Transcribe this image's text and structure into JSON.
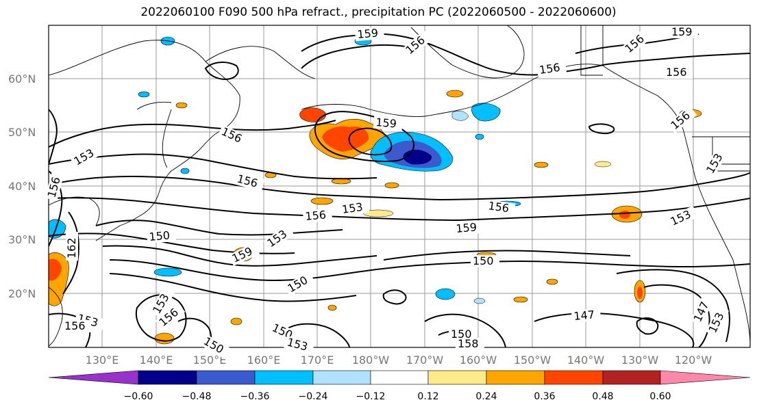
{
  "title": "2022060100 F090 500 hPa refract., precipitation PC (2022060500 - 2022060600)",
  "map": {
    "latitude_labels": [
      "60°N",
      "50°N",
      "40°N",
      "30°N",
      "20°N"
    ],
    "longitude_labels": [
      "130°E",
      "140°E",
      "150°E",
      "160°E",
      "170°E",
      "180°W",
      "170°W",
      "160°W",
      "150°W",
      "140°W",
      "130°W",
      "120°W"
    ],
    "contour_labels": [
      "159",
      "156",
      "156",
      "159",
      "156",
      "156",
      "153",
      "156",
      "156",
      "159",
      "156",
      "153",
      "156",
      "156",
      "153",
      "159",
      "150",
      "153",
      "159",
      "150",
      "153",
      "162",
      "150",
      "150",
      "153",
      "156",
      "153",
      "156",
      "147",
      "150",
      "153",
      "156",
      "147",
      "153",
      "150",
      "158"
    ]
  },
  "colorbar": {
    "tick_labels": [
      "−0.60",
      "−0.48",
      "−0.36",
      "−0.24",
      "−0.12",
      "0.12",
      "0.24",
      "0.36",
      "0.48",
      "0.60"
    ],
    "colors": [
      "#9932cc",
      "#00008b",
      "#3a5acd",
      "#00bfff",
      "#b0e2ff",
      "#ffffff",
      "#ffeb8a",
      "#ffa500",
      "#ff4500",
      "#b22222",
      "#ff88aa"
    ]
  }
}
